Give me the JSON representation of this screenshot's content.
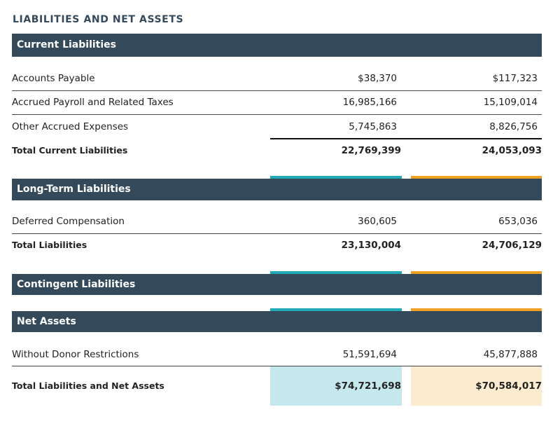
{
  "title": "LIABILITIES AND NET ASSETS",
  "colors": {
    "band": "#34495a",
    "teal_accent": "#23aab7",
    "orange_accent": "#f0a024",
    "teal_fill": "#c4e8ec",
    "orange_fill": "#fdebd0"
  },
  "current": {
    "header": "Current Liabilities",
    "rows": [
      {
        "label": "Accounts Payable",
        "v1": "$38,370",
        "v2": "$117,323"
      },
      {
        "label": "Accrued Payroll and Related Taxes",
        "v1": "16,985,166",
        "v2": "15,109,014"
      },
      {
        "label": "Other Accrued Expenses",
        "v1": "5,745,863",
        "v2": "8,826,756"
      }
    ],
    "total": {
      "label": "Total Current Liabilities",
      "v1": "22,769,399",
      "v2": "24,053,093"
    }
  },
  "long_term": {
    "header": "Long-Term Liabilities",
    "rows": [
      {
        "label": "Deferred Compensation",
        "v1": "360,605",
        "v2": "653,036"
      }
    ],
    "total": {
      "label": "Total Liabilities",
      "v1": "23,130,004",
      "v2": "24,706,129"
    }
  },
  "contingent": {
    "header": "Contingent Liabilities"
  },
  "net_assets": {
    "header": "Net Assets",
    "rows": [
      {
        "label": "Without Donor Restrictions",
        "v1": "51,591,694",
        "v2": "45,877,888"
      }
    ],
    "total": {
      "label": "Total Liabilities and Net Assets",
      "v1": "$74,721,698",
      "v2": "$70,584,017"
    }
  }
}
